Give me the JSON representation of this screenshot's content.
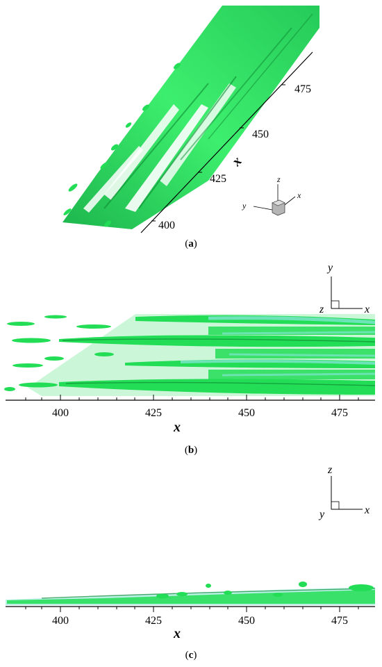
{
  "panels": [
    {
      "id": "a",
      "caption_open": "(",
      "caption_letter": "a",
      "caption_close": ")",
      "axis_label": "x",
      "ticks": [
        "400",
        "425",
        "450",
        "475"
      ],
      "triad": {
        "z": "z",
        "y": "y",
        "x": "x"
      }
    },
    {
      "id": "b",
      "caption_open": "(",
      "caption_letter": "b",
      "caption_close": ")",
      "axis_label": "x",
      "ticks": [
        "400",
        "425",
        "450",
        "475"
      ],
      "triad": {
        "up": "y",
        "out": "z",
        "right": "x"
      }
    },
    {
      "id": "c",
      "caption_open": "(",
      "caption_letter": "c",
      "caption_close": ")",
      "axis_label": "x",
      "ticks": [
        "400",
        "425",
        "450",
        "475"
      ],
      "triad": {
        "up": "z",
        "in": "y",
        "right": "x"
      }
    }
  ],
  "colors": {
    "isosurface": "#22dd55",
    "isosurface_dark": "#0e9a3a",
    "shadow": "#7fe6d0"
  }
}
